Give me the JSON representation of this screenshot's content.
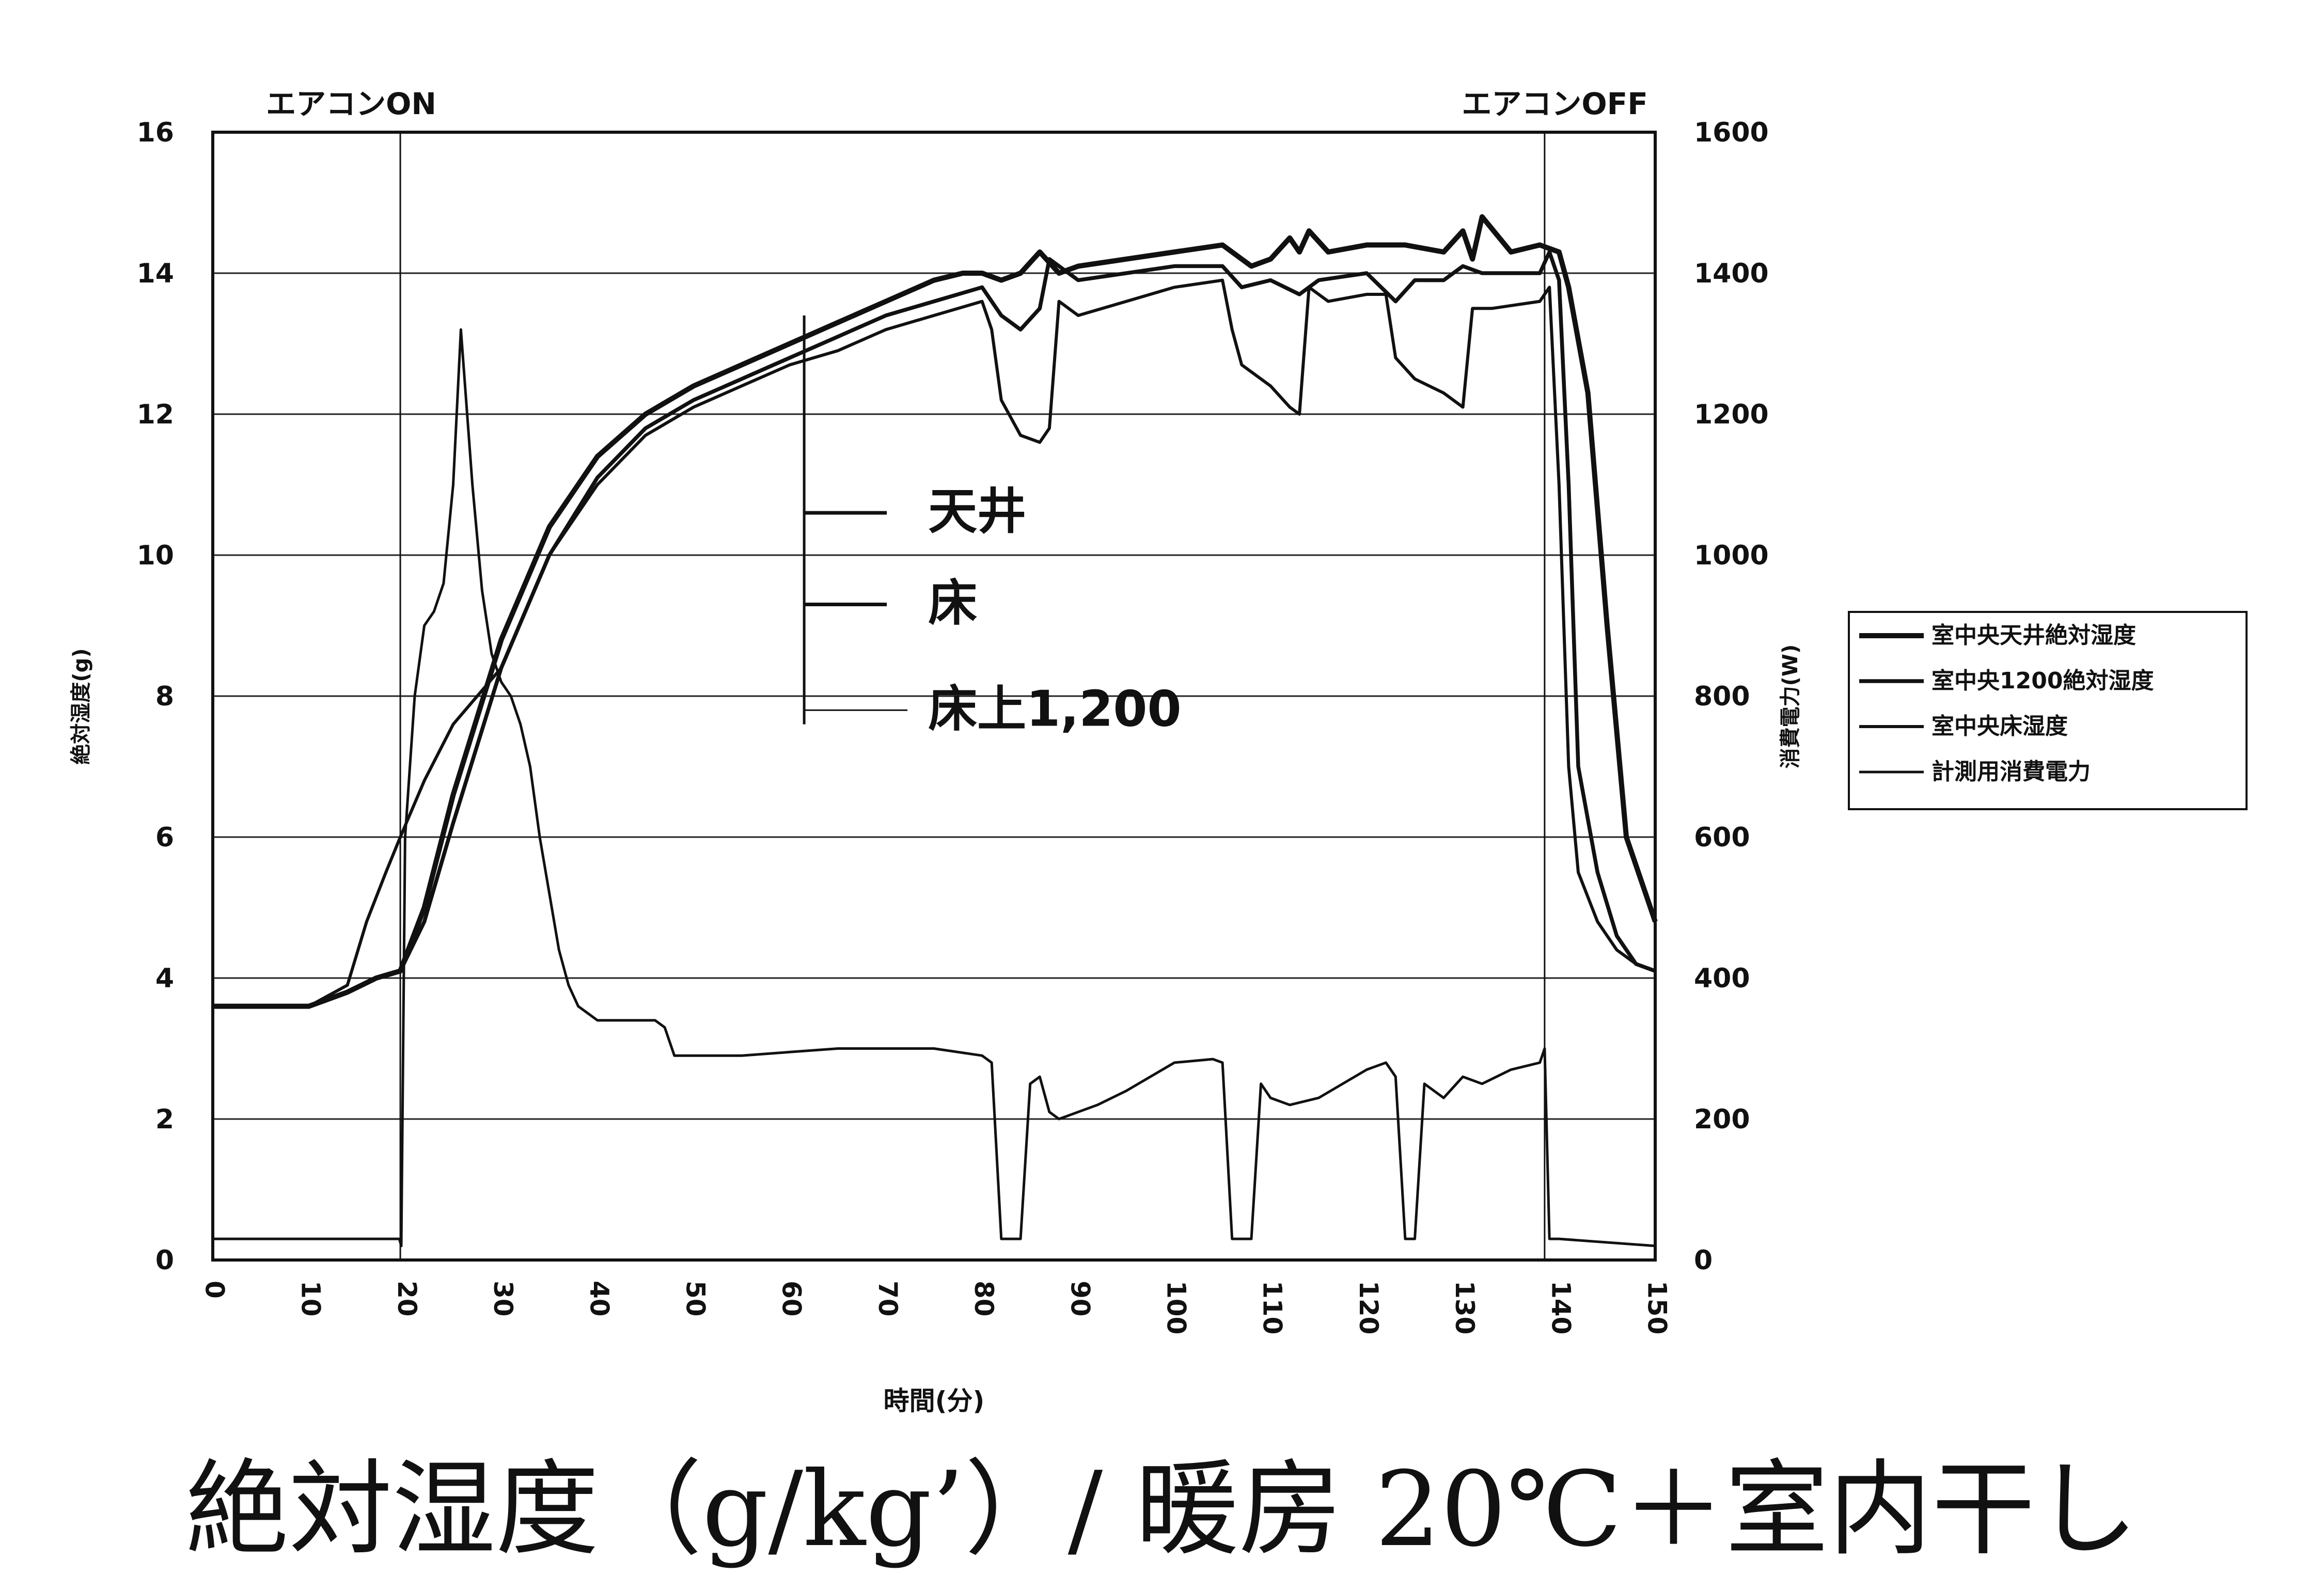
{
  "caption": "絶対湿度（g/kg’）/ 暖房 20℃＋室内干し",
  "chart_data": {
    "type": "line",
    "xlabel": "時間(分)",
    "ylabel_left": "絶対湿度(g)",
    "ylabel_right": "消費電力(W)",
    "xlim": [
      0,
      150
    ],
    "ylim_left": [
      0,
      16
    ],
    "ylim_right": [
      0,
      1600
    ],
    "x_ticks": [
      0,
      10,
      20,
      30,
      40,
      50,
      60,
      70,
      80,
      90,
      100,
      110,
      120,
      130,
      140,
      150
    ],
    "y_ticks_left": [
      0,
      2,
      4,
      6,
      8,
      10,
      12,
      14,
      16
    ],
    "y_ticks_right": [
      0,
      200,
      400,
      600,
      800,
      1000,
      1200,
      1400,
      1600
    ],
    "grid": true,
    "legend_position": "right",
    "event_markers": [
      {
        "x": 19.5,
        "label": "エアコンON"
      },
      {
        "x": 138.5,
        "label": "エアコンOFF"
      }
    ],
    "annotations": [
      {
        "label": "天井",
        "x": 63,
        "y": 10.6
      },
      {
        "label": "床",
        "x": 63,
        "y": 9.3
      },
      {
        "label": "床上1,200",
        "x": 63,
        "y": 7.8
      }
    ],
    "series": [
      {
        "name": "室中央天井絶対湿度",
        "axis": "left",
        "color": "#111111",
        "width": 2.0,
        "x": [
          0,
          5,
          10,
          14,
          17,
          19.5,
          22,
          25,
          30,
          35,
          40,
          45,
          50,
          55,
          60,
          65,
          70,
          75,
          78,
          80,
          82,
          84,
          86,
          88,
          90,
          95,
          100,
          105,
          108,
          110,
          112,
          113,
          114,
          116,
          120,
          124,
          128,
          130,
          131,
          132,
          135,
          138,
          140,
          141,
          143,
          145,
          147,
          149,
          150
        ],
        "y": [
          3.6,
          3.6,
          3.6,
          3.8,
          4.0,
          4.1,
          5.0,
          6.6,
          8.8,
          10.4,
          11.4,
          12.0,
          12.4,
          12.7,
          13.0,
          13.3,
          13.6,
          13.9,
          14.0,
          14.0,
          13.9,
          14.0,
          14.3,
          14.0,
          14.1,
          14.2,
          14.3,
          14.4,
          14.1,
          14.2,
          14.5,
          14.3,
          14.6,
          14.3,
          14.4,
          14.4,
          14.3,
          14.6,
          14.2,
          14.8,
          14.3,
          14.4,
          14.3,
          13.8,
          12.3,
          9.0,
          6.0,
          5.2,
          4.8
        ]
      },
      {
        "name": "室中央1200絶対湿度",
        "axis": "left",
        "color": "#111111",
        "width": 1.5,
        "x": [
          0,
          5,
          10,
          14,
          17,
          19.5,
          22,
          25,
          30,
          35,
          40,
          45,
          50,
          55,
          60,
          65,
          70,
          75,
          80,
          82,
          84,
          86,
          87,
          90,
          95,
          100,
          105,
          107,
          110,
          113,
          115,
          120,
          123,
          125,
          128,
          130,
          132,
          135,
          138,
          139,
          140,
          141,
          142,
          144,
          146,
          148,
          150
        ],
        "y": [
          3.6,
          3.6,
          3.6,
          3.8,
          4.0,
          4.1,
          4.8,
          6.2,
          8.4,
          10.0,
          11.1,
          11.8,
          12.2,
          12.5,
          12.8,
          13.1,
          13.4,
          13.6,
          13.8,
          13.4,
          13.2,
          13.5,
          14.2,
          13.9,
          14.0,
          14.1,
          14.1,
          13.8,
          13.9,
          13.7,
          13.9,
          14.0,
          13.6,
          13.9,
          13.9,
          14.1,
          14.0,
          14.0,
          14.0,
          14.3,
          13.9,
          11.0,
          7.0,
          5.5,
          4.6,
          4.2,
          4.1
        ]
      },
      {
        "name": "室中央床湿度",
        "axis": "left",
        "color": "#111111",
        "width": 1.2,
        "x": [
          0,
          5,
          10,
          14,
          16,
          18,
          19.5,
          22,
          25,
          30,
          35,
          40,
          45,
          50,
          55,
          60,
          65,
          70,
          75,
          80,
          81,
          82,
          84,
          86,
          87,
          88,
          90,
          95,
          100,
          105,
          106,
          107,
          110,
          112,
          113,
          114,
          116,
          120,
          122,
          123,
          125,
          128,
          130,
          131,
          133,
          138,
          139,
          140,
          141,
          142,
          144,
          146,
          148,
          150
        ],
        "y": [
          3.6,
          3.6,
          3.6,
          3.9,
          4.8,
          5.5,
          6.0,
          6.8,
          7.6,
          8.4,
          10.0,
          11.0,
          11.7,
          12.1,
          12.4,
          12.7,
          12.9,
          13.2,
          13.4,
          13.6,
          13.2,
          12.2,
          11.7,
          11.6,
          11.8,
          13.6,
          13.4,
          13.6,
          13.8,
          13.9,
          13.2,
          12.7,
          12.4,
          12.1,
          12.0,
          13.8,
          13.6,
          13.7,
          13.7,
          12.8,
          12.5,
          12.3,
          12.1,
          13.5,
          13.5,
          13.6,
          13.8,
          11.0,
          7.0,
          5.5,
          4.8,
          4.4,
          4.2,
          4.1
        ]
      },
      {
        "name": "計測用消費電力",
        "axis": "right",
        "color": "#111111",
        "width": 1.0,
        "x": [
          0,
          19.4,
          19.6,
          20,
          21,
          22,
          23,
          24,
          25,
          25.8,
          27,
          28,
          29,
          30,
          31,
          32,
          33,
          34,
          35,
          36,
          37,
          38,
          40,
          42,
          45,
          46,
          47,
          48,
          50,
          55,
          60,
          65,
          70,
          75,
          80,
          81,
          82,
          83,
          84,
          85,
          86,
          87,
          88,
          90,
          92,
          95,
          100,
          104,
          105,
          106,
          107,
          108,
          109,
          110,
          112,
          115,
          120,
          122,
          123,
          124,
          125,
          126,
          127,
          128,
          130,
          132,
          135,
          138,
          138.5,
          139,
          140,
          150
        ],
        "y": [
          30,
          30,
          20,
          600,
          800,
          900,
          920,
          960,
          1100,
          1320,
          1100,
          950,
          860,
          820,
          800,
          760,
          700,
          600,
          520,
          440,
          390,
          360,
          340,
          340,
          340,
          340,
          330,
          290,
          290,
          290,
          295,
          300,
          300,
          300,
          290,
          280,
          30,
          30,
          30,
          250,
          260,
          210,
          200,
          210,
          220,
          240,
          280,
          285,
          280,
          30,
          30,
          30,
          250,
          230,
          220,
          230,
          270,
          280,
          260,
          30,
          30,
          250,
          240,
          230,
          260,
          250,
          270,
          280,
          300,
          30,
          30,
          20
        ]
      }
    ]
  }
}
